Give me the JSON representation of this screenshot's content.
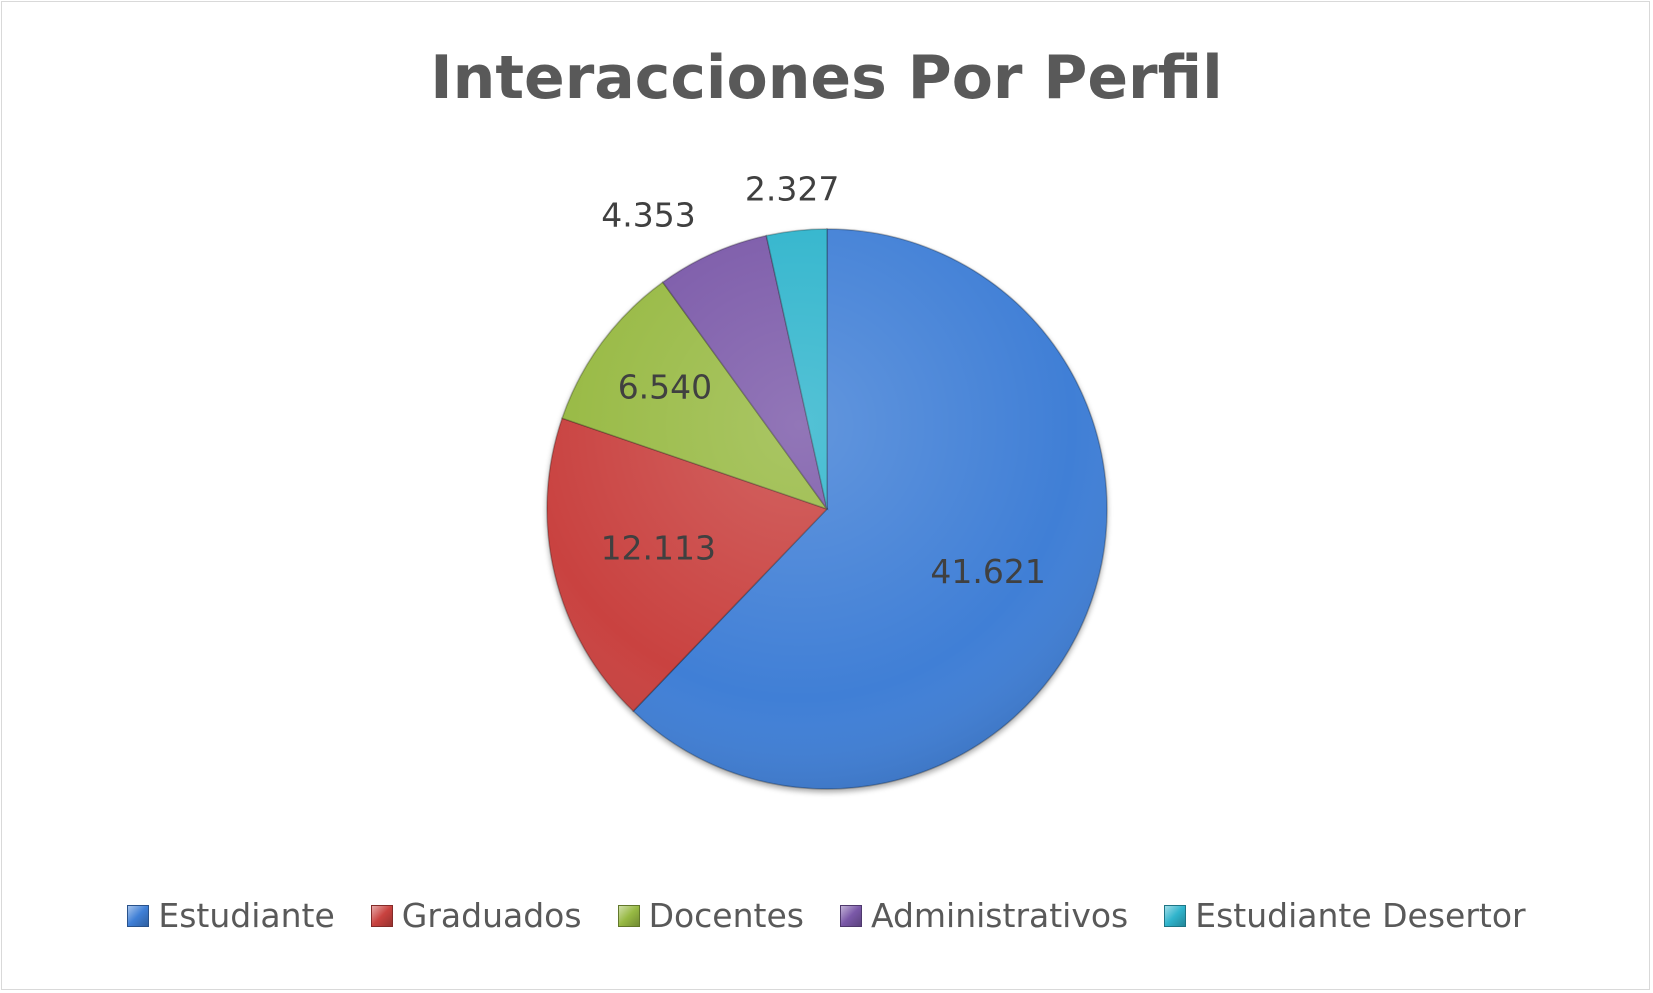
{
  "chart_data": {
    "type": "pie",
    "title": "Interacciones Por Perfil",
    "categories": [
      "Estudiante",
      "Graduados",
      "Docentes",
      "Administrativos",
      "Estudiante Desertor"
    ],
    "values": [
      41621,
      12113,
      6540,
      4353,
      2327
    ],
    "value_labels": [
      "41.621",
      "12.113",
      "6.540",
      "4.353",
      "2.327"
    ],
    "colors": [
      "#3f7fd6",
      "#c9423f",
      "#97b943",
      "#7a58a8",
      "#2fb4cc"
    ],
    "legend_position": "bottom",
    "start_angle_deg": 0,
    "direction": "clockwise"
  }
}
